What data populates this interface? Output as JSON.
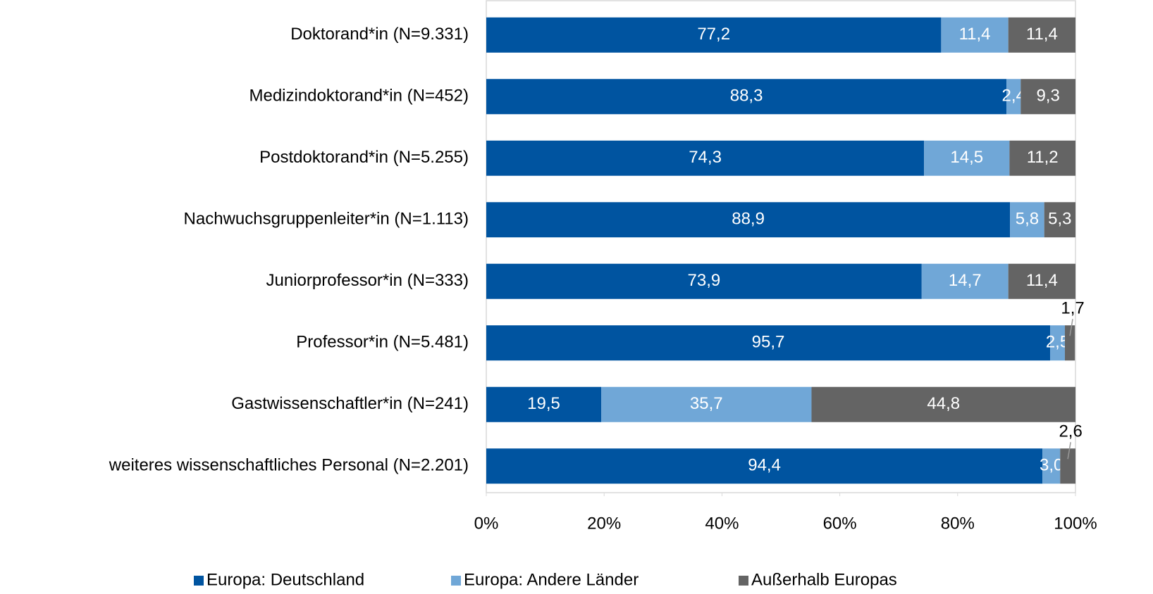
{
  "chart_data": {
    "type": "stacked_bar_horizontal",
    "categories": [
      "Doktorand*in (N=9.331)",
      "Medizindoktorand*in (N=452)",
      "Postdoktorand*in (N=5.255)",
      "Nachwuchsgruppenleiter*in (N=1.113)",
      "Juniorprofessor*in (N=333)",
      "Professor*in (N=5.481)",
      "Gastwissenschaftler*in (N=241)",
      "weiteres wissenschaftliches Personal (N=2.201)"
    ],
    "series": [
      {
        "name": "Europa: Deutschland",
        "color": "#0054a0",
        "values": [
          77.2,
          88.3,
          74.3,
          88.9,
          73.9,
          95.7,
          19.5,
          94.4
        ],
        "value_labels": [
          "77,2",
          "88,3",
          "74,3",
          "88,9",
          "73,9",
          "95,7",
          "19,5",
          "94,4"
        ]
      },
      {
        "name": "Europa: Andere Länder",
        "color": "#70a7d7",
        "values": [
          11.4,
          2.4,
          14.5,
          5.8,
          14.7,
          2.5,
          35.7,
          3.0
        ],
        "value_labels": [
          "11,4",
          "2,4",
          "14,5",
          "5,8",
          "14,7",
          "2,5",
          "35,7",
          "3,0"
        ]
      },
      {
        "name": "Außerhalb Europas",
        "color": "#646464",
        "values": [
          11.4,
          9.3,
          11.2,
          5.3,
          11.4,
          1.7,
          44.8,
          2.6
        ],
        "value_labels": [
          "11,4",
          "9,3",
          "11,2",
          "5,3",
          "11,4",
          "1,7",
          "44,8",
          "2,6"
        ]
      }
    ],
    "xlim": [
      0,
      100
    ],
    "xticks": [
      {
        "value": 0,
        "label": "0%"
      },
      {
        "value": 20,
        "label": "20%"
      },
      {
        "value": 40,
        "label": "40%"
      },
      {
        "value": 60,
        "label": "60%"
      },
      {
        "value": 80,
        "label": "80%"
      },
      {
        "value": 100,
        "label": "100%"
      }
    ],
    "legend": "bottom"
  }
}
